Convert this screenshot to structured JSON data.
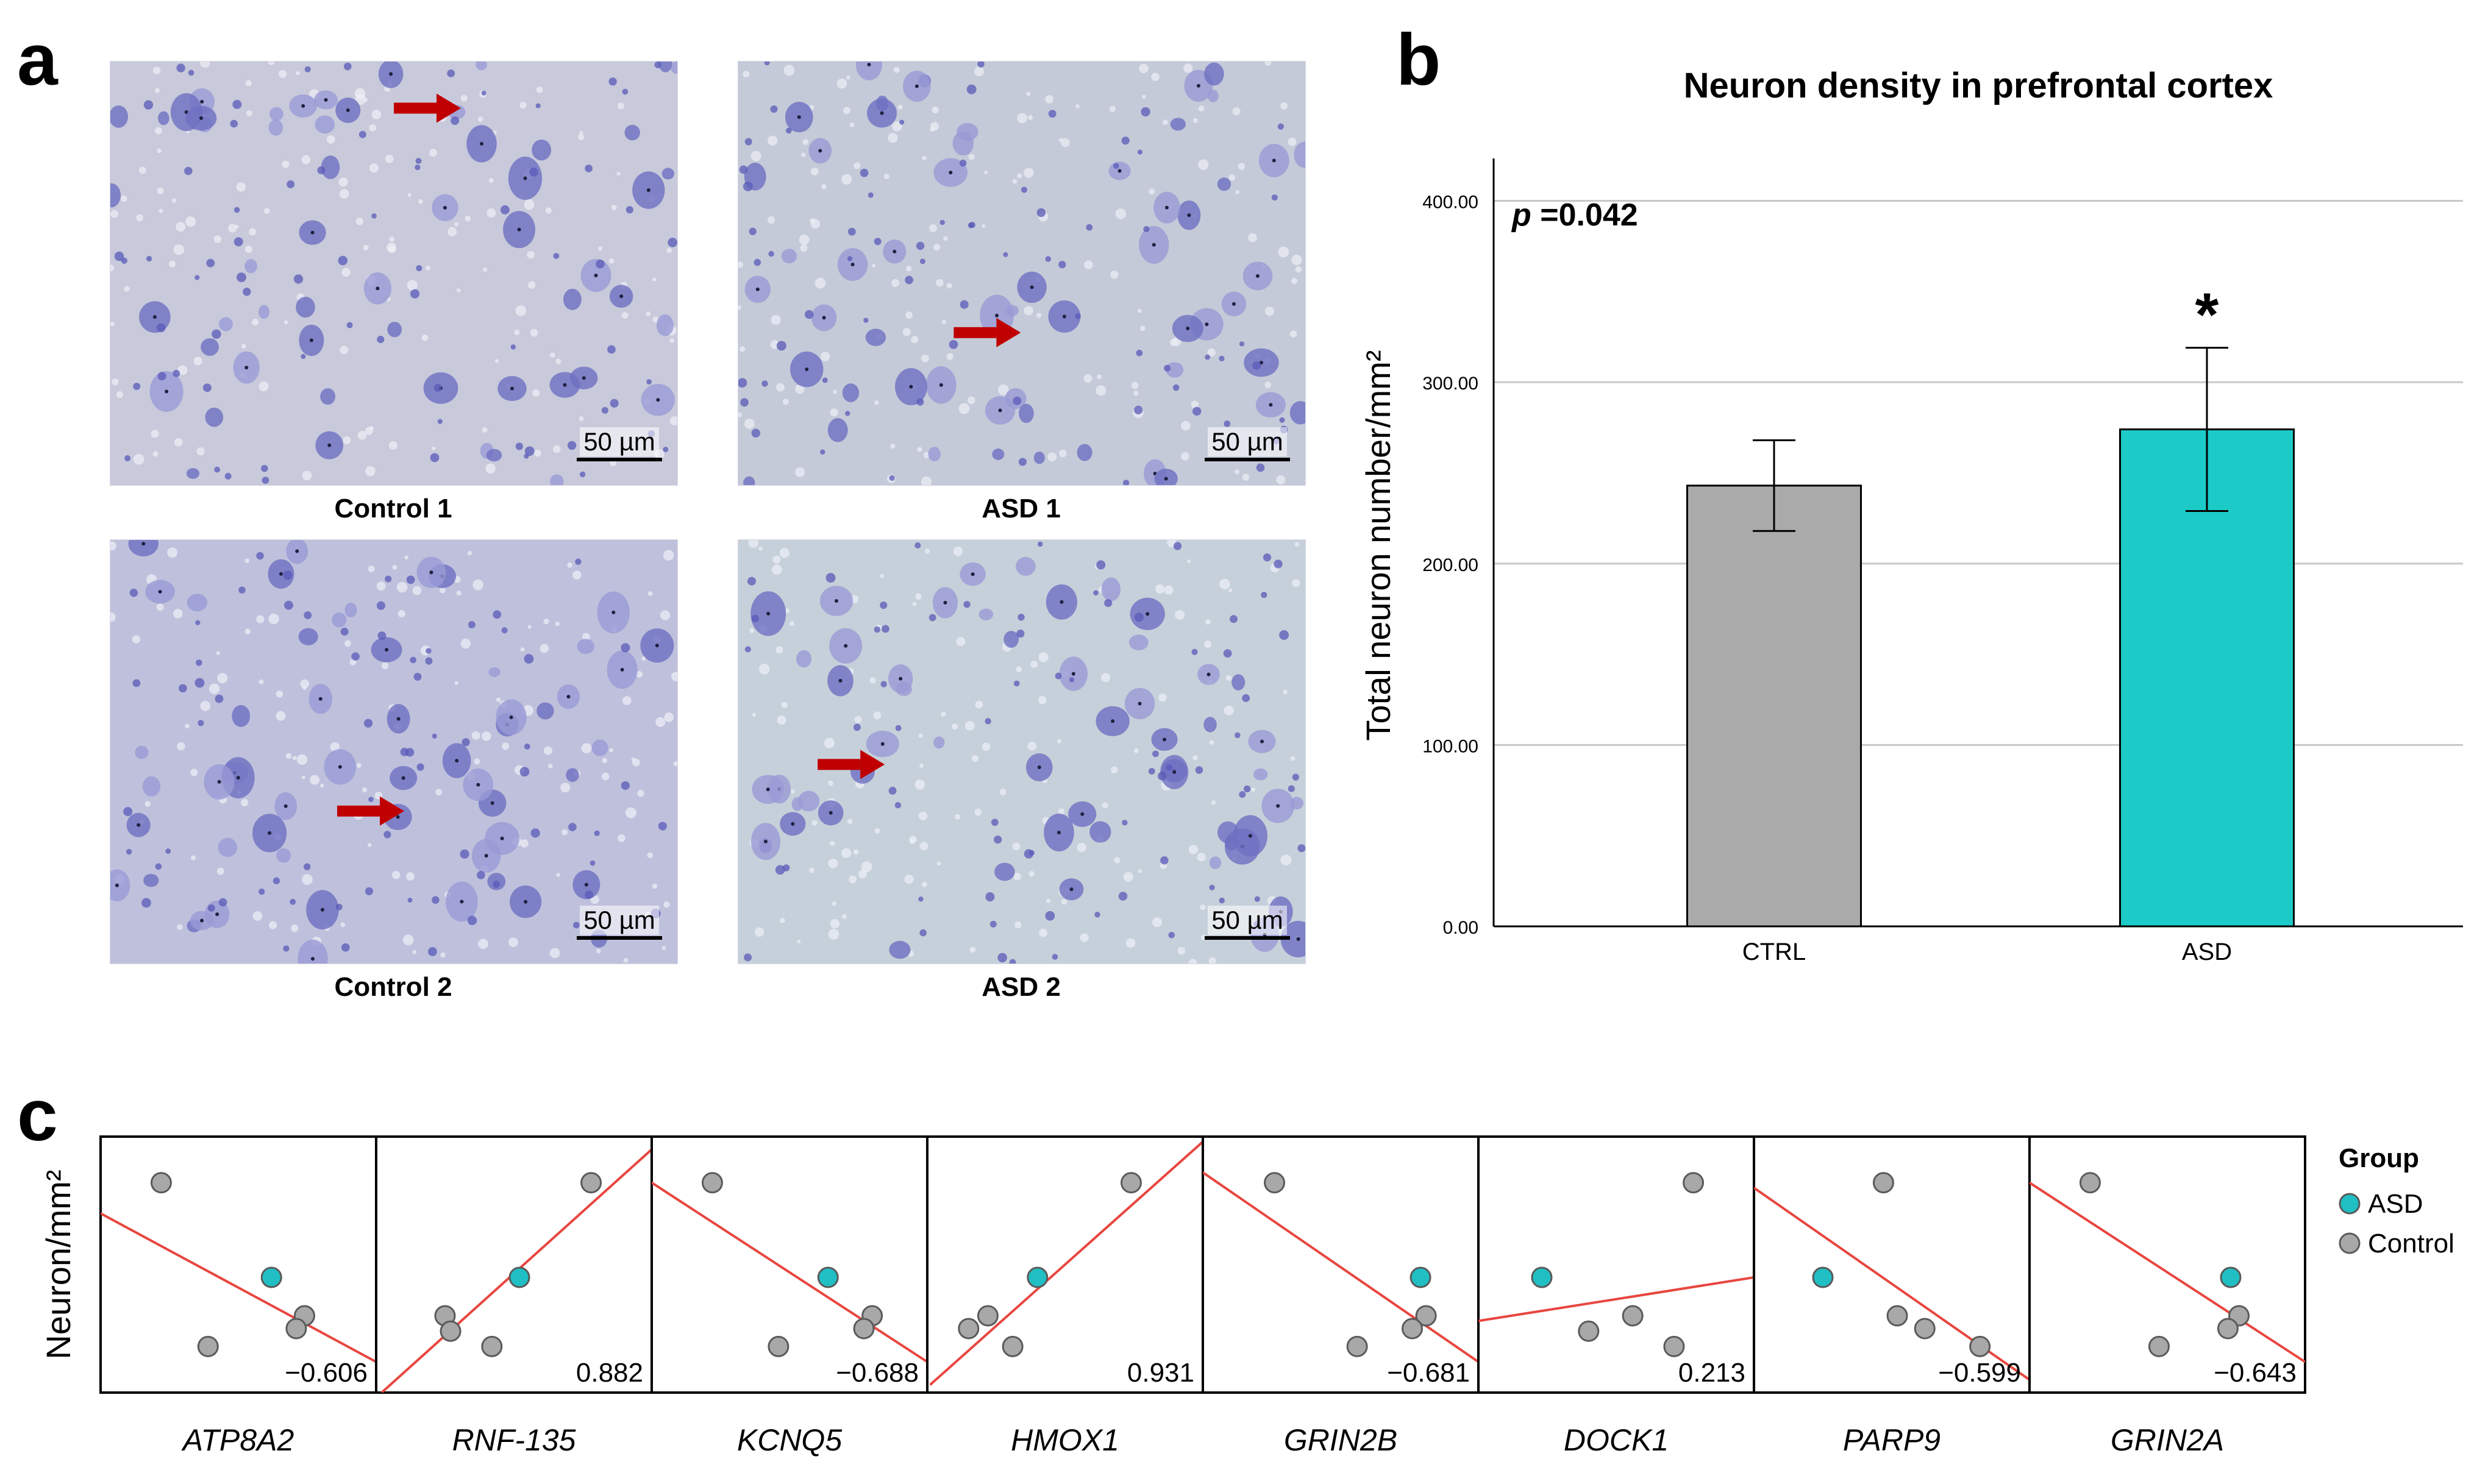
{
  "panel_labels": {
    "a": "a",
    "b": "b",
    "c": "c"
  },
  "panel_a": {
    "images": [
      {
        "caption": "Control 1",
        "scale": "50 µm",
        "tone": "#c8cadb"
      },
      {
        "caption": "ASD 1",
        "scale": "50 µm",
        "tone": "#c4cad8"
      },
      {
        "caption": "Control 2",
        "scale": "50 µm",
        "tone": "#bfc1dc"
      },
      {
        "caption": "ASD 2",
        "scale": "50 µm",
        "tone": "#c6d0da"
      }
    ],
    "colors": {
      "arrow": "#c00000",
      "neuron": "#6e6fc2",
      "neuron_light": "#9a9ad6"
    }
  },
  "chart_data": [
    {
      "type": "bar",
      "title": "Neuron density in prefrontal cortex",
      "annotation_p_label": "p",
      "annotation_p_value": "=0.042",
      "significance_marker": "*",
      "categories": [
        "CTRL",
        "ASD"
      ],
      "values": [
        243,
        274
      ],
      "error_low": [
        218,
        229
      ],
      "error_high": [
        268,
        319
      ],
      "ylabel": "Total neuron number/mm²",
      "ylim": [
        0,
        420
      ],
      "yticks": [
        0,
        100,
        200,
        300,
        400
      ],
      "ytick_labels": [
        "0.00",
        "100.00",
        "200.00",
        "300.00",
        "400.00"
      ],
      "colors": [
        "#aaaaaa",
        "#1ccac8"
      ]
    },
    {
      "type": "scatter",
      "ylabel": "Neuron/mm²",
      "legend_title": "Group",
      "legend": [
        {
          "name": "ASD",
          "color": "#1fbfc4"
        },
        {
          "name": "Control",
          "color": "#a8a8a8"
        }
      ],
      "facets": [
        {
          "gene": "ATP8A2",
          "r": "−0.606",
          "points": [
            [
              0.22,
              0.82
            ],
            [
              0.62,
              0.45
            ],
            [
              0.74,
              0.3
            ],
            [
              0.71,
              0.25
            ],
            [
              0.39,
              0.18
            ]
          ],
          "groups": [
            "Control",
            "ASD",
            "Control",
            "Control",
            "Control"
          ],
          "line": [
            [
              0,
              0.7
            ],
            [
              1,
              0.12
            ]
          ]
        },
        {
          "gene": "RNF-135",
          "r": "0.882",
          "points": [
            [
              0.78,
              0.82
            ],
            [
              0.52,
              0.45
            ],
            [
              0.25,
              0.3
            ],
            [
              0.27,
              0.24
            ],
            [
              0.42,
              0.18
            ]
          ],
          "groups": [
            "Control",
            "ASD",
            "Control",
            "Control",
            "Control"
          ],
          "line": [
            [
              0.02,
              0
            ],
            [
              1,
              0.95
            ]
          ]
        },
        {
          "gene": "KCNQ5",
          "r": "−0.688",
          "points": [
            [
              0.22,
              0.82
            ],
            [
              0.64,
              0.45
            ],
            [
              0.8,
              0.3
            ],
            [
              0.77,
              0.25
            ],
            [
              0.46,
              0.18
            ]
          ],
          "groups": [
            "Control",
            "ASD",
            "Control",
            "Control",
            "Control"
          ],
          "line": [
            [
              0,
              0.82
            ],
            [
              1,
              0.12
            ]
          ]
        },
        {
          "gene": "HMOX1",
          "r": "0.931",
          "points": [
            [
              0.74,
              0.82
            ],
            [
              0.4,
              0.45
            ],
            [
              0.22,
              0.3
            ],
            [
              0.15,
              0.25
            ],
            [
              0.31,
              0.18
            ]
          ],
          "groups": [
            "Control",
            "ASD",
            "Control",
            "Control",
            "Control"
          ],
          "line": [
            [
              0.01,
              0.03
            ],
            [
              1,
              0.98
            ]
          ]
        },
        {
          "gene": "GRIN2B",
          "r": "−0.681",
          "points": [
            [
              0.26,
              0.82
            ],
            [
              0.79,
              0.45
            ],
            [
              0.81,
              0.3
            ],
            [
              0.76,
              0.25
            ],
            [
              0.56,
              0.18
            ]
          ],
          "groups": [
            "Control",
            "ASD",
            "Control",
            "Control",
            "Control"
          ],
          "line": [
            [
              0,
              0.86
            ],
            [
              1,
              0.12
            ]
          ]
        },
        {
          "gene": "DOCK1",
          "r": "0.213",
          "points": [
            [
              0.78,
              0.82
            ],
            [
              0.23,
              0.45
            ],
            [
              0.56,
              0.3
            ],
            [
              0.4,
              0.24
            ],
            [
              0.71,
              0.18
            ]
          ],
          "groups": [
            "Control",
            "ASD",
            "Control",
            "Control",
            "Control"
          ],
          "line": [
            [
              0,
              0.28
            ],
            [
              1,
              0.45
            ]
          ]
        },
        {
          "gene": "PARP9",
          "r": "−0.599",
          "points": [
            [
              0.47,
              0.82
            ],
            [
              0.25,
              0.45
            ],
            [
              0.52,
              0.3
            ],
            [
              0.62,
              0.25
            ],
            [
              0.82,
              0.18
            ]
          ],
          "groups": [
            "Control",
            "ASD",
            "Control",
            "Control",
            "Control"
          ],
          "line": [
            [
              0,
              0.8
            ],
            [
              1,
              0.05
            ]
          ]
        },
        {
          "gene": "GRIN2A",
          "r": "−0.643",
          "points": [
            [
              0.22,
              0.82
            ],
            [
              0.73,
              0.45
            ],
            [
              0.76,
              0.3
            ],
            [
              0.72,
              0.25
            ],
            [
              0.47,
              0.18
            ]
          ],
          "groups": [
            "Control",
            "ASD",
            "Control",
            "Control",
            "Control"
          ],
          "line": [
            [
              0,
              0.82
            ],
            [
              1,
              0.12
            ]
          ]
        }
      ],
      "colors": {
        "fit_line": "#e8463f",
        "point_stroke": "#5a5a5a"
      }
    }
  ]
}
